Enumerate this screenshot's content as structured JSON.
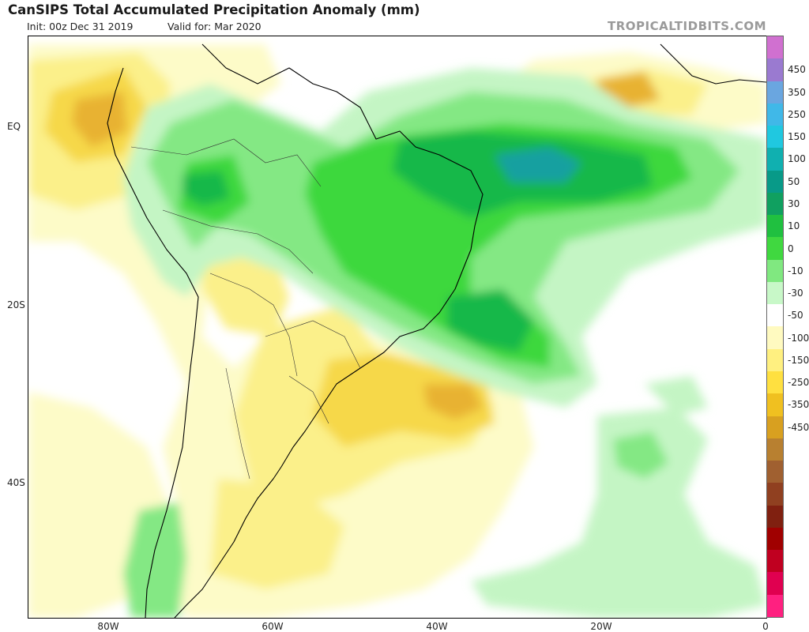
{
  "header": {
    "title": "CanSIPS Total Accumulated Precipitation Anomaly (mm)",
    "init": "Init: 00z Dec 31 2019",
    "valid": "Valid for: Mar 2020",
    "brand": "TROPICALTIDBITS.COM"
  },
  "axes": {
    "lat_labels": [
      "EQ",
      "20S",
      "40S"
    ],
    "lon_labels": [
      "80W",
      "60W",
      "40W",
      "20W",
      "0"
    ]
  },
  "colorbar": {
    "labels": [
      "450",
      "350",
      "250",
      "150",
      "100",
      "50",
      "30",
      "10",
      "0",
      "-10",
      "-30",
      "-50",
      "-100",
      "-150",
      "-250",
      "-350",
      "-450"
    ],
    "colors": [
      "#d070d0",
      "#9a7ad0",
      "#6aa6e0",
      "#40b8e8",
      "#20c8e0",
      "#10b0b0",
      "#089a88",
      "#10a060",
      "#20c040",
      "#40d840",
      "#80e880",
      "#c8f8c8",
      "#ffffff",
      "#fffac0",
      "#fff080",
      "#ffe040",
      "#f0c020",
      "#d8a020",
      "#b88030",
      "#a06030",
      "#904020",
      "#802010",
      "#a00000",
      "#c00020",
      "#e00050",
      "#ff2080"
    ]
  },
  "anomaly_colors": {
    "dry1": "#fdfbc8",
    "dry2": "#fbf08a",
    "dry3": "#f6d84a",
    "dry4": "#e8b230",
    "dry5": "#cc9430",
    "wet1": "#c4f5c4",
    "wet2": "#84e884",
    "wet3": "#3ed83e",
    "wet4": "#18b848",
    "wet5": "#0aa070",
    "wet6": "#12a0a0"
  }
}
